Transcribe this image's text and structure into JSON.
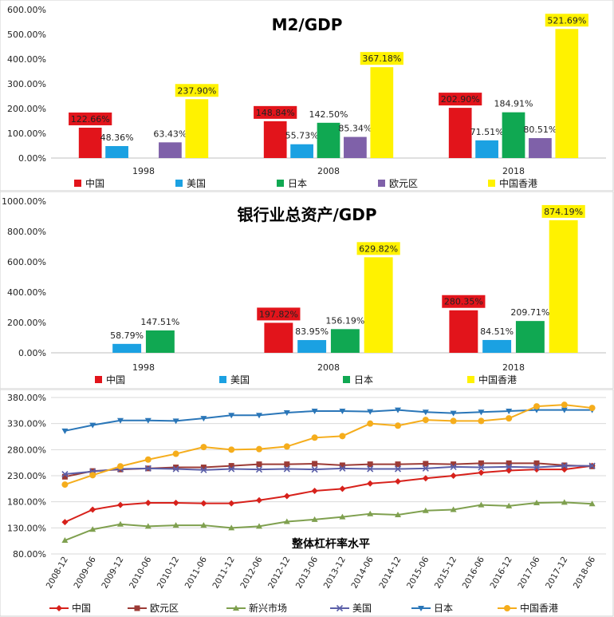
{
  "colors": {
    "china": "#e2141b",
    "usa": "#1ba1e2",
    "japan": "#10a852",
    "euro": "#7f61a9",
    "hk": "#fff200",
    "line_china": "#d7211b",
    "line_euro": "#9c3b36",
    "line_emerging": "#7fa04f",
    "line_usa": "#5b5fa8",
    "line_japan": "#2a76b8",
    "line_hk": "#f5ad1c",
    "grid": "#d9d9d9",
    "axis_text": "#222222"
  },
  "legend_icons": {
    "china": "square",
    "line_china": "diamond-marker",
    "line_euro": "square-marker",
    "line_emerging": "triangle-marker",
    "line_usa": "x-marker",
    "line_japan": "triangle-down-marker",
    "line_hk": "circle-marker"
  },
  "chart_data": [
    {
      "type": "bar",
      "title": "M2/GDP",
      "categories": [
        "1998",
        "2008",
        "2018"
      ],
      "ylim": [
        0,
        600
      ],
      "ticks": [
        "0.00%",
        "100.00%",
        "200.00%",
        "300.00%",
        "400.00%",
        "500.00%",
        "600.00%"
      ],
      "tick_values": [
        0,
        100,
        200,
        300,
        400,
        500,
        600
      ],
      "legend_position": "bottom",
      "series": [
        {
          "name": "中国",
          "key": "china",
          "values": [
            122.66,
            148.84,
            202.9
          ],
          "labels": [
            "122.66%",
            "148.84%",
            "202.90%"
          ]
        },
        {
          "name": "美国",
          "key": "usa",
          "values": [
            48.36,
            55.73,
            71.51
          ],
          "labels": [
            "48.36%",
            "55.73%",
            "71.51%"
          ]
        },
        {
          "name": "日本",
          "key": "japan",
          "values": [
            null,
            142.5,
            184.91
          ],
          "labels": [
            "",
            "142.50%",
            "184.91%"
          ]
        },
        {
          "name": "欧元区",
          "key": "euro",
          "values": [
            63.43,
            85.34,
            80.51
          ],
          "labels": [
            "63.43%",
            "85.34%",
            "80.51%"
          ]
        },
        {
          "name": "中国香港",
          "key": "hk",
          "values": [
            237.9,
            367.18,
            521.69
          ],
          "labels": [
            "237.90%",
            "367.18%",
            "521.69%"
          ]
        }
      ]
    },
    {
      "type": "bar",
      "title": "银行业总资产/GDP",
      "categories": [
        "1998",
        "2008",
        "2018"
      ],
      "ylim": [
        0,
        1000
      ],
      "ticks": [
        "0.00%",
        "200.00%",
        "400.00%",
        "600.00%",
        "800.00%",
        "1000.00%"
      ],
      "tick_values": [
        0,
        200,
        400,
        600,
        800,
        1000
      ],
      "legend_position": "bottom",
      "series": [
        {
          "name": "中国",
          "key": "china",
          "values": [
            null,
            197.82,
            280.35
          ],
          "labels": [
            "",
            "197.82%",
            "280.35%"
          ]
        },
        {
          "name": "美国",
          "key": "usa",
          "values": [
            58.79,
            83.95,
            84.51
          ],
          "labels": [
            "58.79%",
            "83.95%",
            "84.51%"
          ]
        },
        {
          "name": "日本",
          "key": "japan",
          "values": [
            147.51,
            156.19,
            209.71
          ],
          "labels": [
            "147.51%",
            "156.19%",
            "209.71%"
          ]
        },
        {
          "name": "中国香港",
          "key": "hk",
          "values": [
            null,
            629.82,
            874.19
          ],
          "labels": [
            "",
            "629.82%",
            "874.19%"
          ]
        }
      ]
    },
    {
      "type": "line",
      "title": "整体杠杆率水平",
      "x": [
        "2008-12",
        "2009-06",
        "2009-12",
        "2010-06",
        "2010-12",
        "2011-06",
        "2011-12",
        "2012-06",
        "2012-12",
        "2013-06",
        "2013-12",
        "2014-06",
        "2014-12",
        "2015-06",
        "2015-12",
        "2016-06",
        "2016-12",
        "2017-06",
        "2017-12",
        "2018-06"
      ],
      "ylim": [
        80,
        380
      ],
      "ticks": [
        "80.00%",
        "130.00%",
        "180.00%",
        "230.00%",
        "280.00%",
        "330.00%",
        "380.00%"
      ],
      "tick_values": [
        80,
        130,
        180,
        230,
        280,
        330,
        380
      ],
      "grid": true,
      "legend_position": "bottom",
      "series": [
        {
          "name": "中国",
          "key": "line_china",
          "values": [
            141,
            165,
            174,
            178,
            178,
            177,
            177,
            183,
            191,
            201,
            205,
            215,
            219,
            225,
            230,
            236,
            240,
            242,
            242,
            249
          ]
        },
        {
          "name": "欧元区",
          "key": "line_euro",
          "values": [
            228,
            239,
            242,
            244,
            246,
            246,
            249,
            252,
            252,
            253,
            250,
            252,
            252,
            253,
            252,
            254,
            254,
            254,
            250,
            248
          ]
        },
        {
          "name": "新兴市场",
          "key": "line_emerging",
          "values": [
            106,
            127,
            137,
            133,
            135,
            135,
            130,
            133,
            142,
            146,
            151,
            157,
            155,
            163,
            165,
            174,
            172,
            178,
            179,
            176
          ]
        },
        {
          "name": "美国",
          "key": "line_usa",
          "values": [
            233,
            238,
            243,
            244,
            243,
            241,
            243,
            242,
            243,
            242,
            244,
            243,
            243,
            244,
            247,
            246,
            247,
            246,
            249,
            249
          ]
        },
        {
          "name": "日本",
          "key": "line_japan",
          "values": [
            316,
            327,
            336,
            336,
            335,
            340,
            346,
            346,
            351,
            354,
            354,
            353,
            356,
            352,
            350,
            352,
            354,
            356,
            356,
            356
          ]
        },
        {
          "name": "中国香港",
          "key": "line_hk",
          "values": [
            213,
            231,
            248,
            261,
            272,
            285,
            280,
            281,
            286,
            303,
            306,
            330,
            326,
            337,
            335,
            335,
            340,
            363,
            366,
            360
          ]
        }
      ]
    }
  ]
}
